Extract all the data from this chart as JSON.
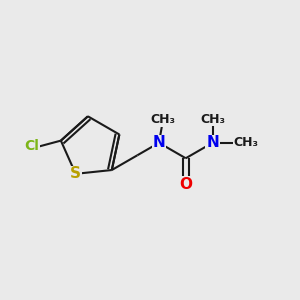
{
  "background_color": "#EAEAEA",
  "bond_color": "#1a1a1a",
  "cl_color": "#7CB518",
  "s_color": "#B8A000",
  "n_color": "#0000EE",
  "o_color": "#EE0000",
  "bond_lw": 1.5,
  "font_size": 10,
  "figsize": [
    3.0,
    3.0
  ],
  "dpi": 100,
  "xlim": [
    0,
    10
  ],
  "ylim": [
    0,
    10
  ]
}
